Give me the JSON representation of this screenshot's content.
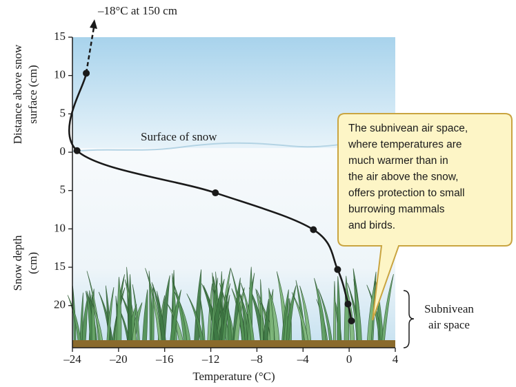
{
  "chart_data": {
    "type": "line",
    "top_annotation": "–18°C at 150 cm",
    "x_label": "Temperature (°C)",
    "y_label_above": [
      "Distance above snow",
      "surface (cm)"
    ],
    "y_label_below": [
      "Snow depth",
      "(cm)"
    ],
    "surface_label": "Surface of snow",
    "bracket_label": [
      "Subnivean",
      "air space"
    ],
    "callout": [
      "The subnivean air space,",
      "where temperatures are",
      "much warmer than in",
      "the air above the snow,",
      "offers protection to small",
      "burrowing mammals",
      "and birds."
    ],
    "series": [
      {
        "color": "#1a1a1a",
        "x": [
          -22.8,
          -23.6,
          -11.6,
          -3.1,
          -1.0,
          -0.1,
          0.2
        ],
        "y": [
          10.3,
          0.2,
          -5.3,
          -10.1,
          -15.3,
          -19.8,
          -22
        ]
      }
    ],
    "xlim": [
      -24,
      4
    ],
    "xticks": [
      {
        "value": -24,
        "label": "–24"
      },
      {
        "value": -20,
        "label": "–20"
      },
      {
        "value": -16,
        "label": "–16"
      },
      {
        "value": -12,
        "label": "–12"
      },
      {
        "value": -8,
        "label": "–8"
      },
      {
        "value": -4,
        "label": "–4"
      },
      0,
      4
    ],
    "ylim": [
      -25.5,
      15
    ],
    "yticks": [
      15,
      10,
      5,
      0,
      {
        "value": -5,
        "label": "5"
      },
      {
        "value": -10,
        "label": "10"
      },
      {
        "value": -15,
        "label": "15"
      },
      {
        "value": -20,
        "label": "20"
      }
    ]
  }
}
